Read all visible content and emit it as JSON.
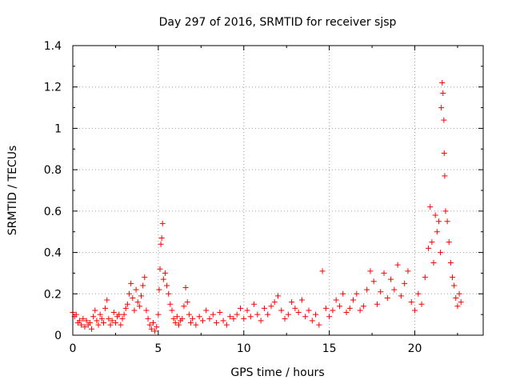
{
  "chart_data": {
    "type": "scatter",
    "title": "Day 297 of 2016, SRMTID for receiver sjsp",
    "xlabel": "GPS time / hours",
    "ylabel": "SRMTID / TECUs",
    "xlim": [
      0,
      24
    ],
    "ylim": [
      0,
      1.4
    ],
    "xticks": [
      0,
      5,
      10,
      15,
      20
    ],
    "yticks": [
      0,
      0.2,
      0.4,
      0.6,
      0.8,
      1,
      1.2,
      1.4
    ],
    "ytick_labels": [
      "0",
      "0.2",
      "0.4",
      "0.6",
      "0.8",
      "1",
      "1.2",
      "1.4"
    ],
    "grid": true,
    "marker": "plus",
    "color": "#ff0000",
    "series": [
      {
        "name": "sjsp",
        "points": [
          [
            0.0,
            0.11
          ],
          [
            0.1,
            0.09
          ],
          [
            0.2,
            0.1
          ],
          [
            0.3,
            0.06
          ],
          [
            0.4,
            0.07
          ],
          [
            0.5,
            0.05
          ],
          [
            0.6,
            0.08
          ],
          [
            0.7,
            0.04
          ],
          [
            0.8,
            0.07
          ],
          [
            0.9,
            0.05
          ],
          [
            1.0,
            0.06
          ],
          [
            1.1,
            0.03
          ],
          [
            1.2,
            0.09
          ],
          [
            1.3,
            0.12
          ],
          [
            1.4,
            0.07
          ],
          [
            1.5,
            0.05
          ],
          [
            1.6,
            0.1
          ],
          [
            1.7,
            0.08
          ],
          [
            1.8,
            0.06
          ],
          [
            1.9,
            0.13
          ],
          [
            2.0,
            0.17
          ],
          [
            2.1,
            0.08
          ],
          [
            2.2,
            0.05
          ],
          [
            2.3,
            0.07
          ],
          [
            2.4,
            0.11
          ],
          [
            2.5,
            0.06
          ],
          [
            2.6,
            0.09
          ],
          [
            2.7,
            0.1
          ],
          [
            2.8,
            0.05
          ],
          [
            2.9,
            0.08
          ],
          [
            3.0,
            0.1
          ],
          [
            3.1,
            0.13
          ],
          [
            3.2,
            0.15
          ],
          [
            3.3,
            0.2
          ],
          [
            3.4,
            0.25
          ],
          [
            3.5,
            0.18
          ],
          [
            3.6,
            0.12
          ],
          [
            3.7,
            0.22
          ],
          [
            3.8,
            0.16
          ],
          [
            3.9,
            0.14
          ],
          [
            4.0,
            0.19
          ],
          [
            4.1,
            0.24
          ],
          [
            4.2,
            0.28
          ],
          [
            4.3,
            0.12
          ],
          [
            4.4,
            0.08
          ],
          [
            4.5,
            0.05
          ],
          [
            4.6,
            0.03
          ],
          [
            4.7,
            0.06
          ],
          [
            4.8,
            0.02
          ],
          [
            4.9,
            0.04
          ],
          [
            5.0,
            0.1
          ],
          [
            5.05,
            0.22
          ],
          [
            5.1,
            0.32
          ],
          [
            5.15,
            0.44
          ],
          [
            5.2,
            0.47
          ],
          [
            5.25,
            0.54
          ],
          [
            5.3,
            0.27
          ],
          [
            5.4,
            0.3
          ],
          [
            5.5,
            0.24
          ],
          [
            5.6,
            0.2
          ],
          [
            5.7,
            0.15
          ],
          [
            5.8,
            0.12
          ],
          [
            5.9,
            0.08
          ],
          [
            6.0,
            0.06
          ],
          [
            6.1,
            0.09
          ],
          [
            6.2,
            0.05
          ],
          [
            6.3,
            0.07
          ],
          [
            6.4,
            0.08
          ],
          [
            6.5,
            0.14
          ],
          [
            6.6,
            0.23
          ],
          [
            6.7,
            0.16
          ],
          [
            6.8,
            0.1
          ],
          [
            6.9,
            0.06
          ],
          [
            7.0,
            0.08
          ],
          [
            7.2,
            0.05
          ],
          [
            7.4,
            0.09
          ],
          [
            7.6,
            0.07
          ],
          [
            7.8,
            0.12
          ],
          [
            8.0,
            0.08
          ],
          [
            8.2,
            0.1
          ],
          [
            8.4,
            0.06
          ],
          [
            8.6,
            0.11
          ],
          [
            8.8,
            0.07
          ],
          [
            9.0,
            0.05
          ],
          [
            9.2,
            0.09
          ],
          [
            9.4,
            0.08
          ],
          [
            9.6,
            0.1
          ],
          [
            9.8,
            0.13
          ],
          [
            10.0,
            0.08
          ],
          [
            10.2,
            0.12
          ],
          [
            10.4,
            0.09
          ],
          [
            10.6,
            0.15
          ],
          [
            10.8,
            0.1
          ],
          [
            11.0,
            0.07
          ],
          [
            11.2,
            0.13
          ],
          [
            11.4,
            0.1
          ],
          [
            11.6,
            0.14
          ],
          [
            11.8,
            0.16
          ],
          [
            12.0,
            0.19
          ],
          [
            12.2,
            0.12
          ],
          [
            12.4,
            0.08
          ],
          [
            12.6,
            0.1
          ],
          [
            12.8,
            0.16
          ],
          [
            13.0,
            0.13
          ],
          [
            13.2,
            0.11
          ],
          [
            13.4,
            0.17
          ],
          [
            13.6,
            0.09
          ],
          [
            13.8,
            0.12
          ],
          [
            14.0,
            0.07
          ],
          [
            14.2,
            0.1
          ],
          [
            14.4,
            0.05
          ],
          [
            14.6,
            0.31
          ],
          [
            14.8,
            0.13
          ],
          [
            15.0,
            0.09
          ],
          [
            15.2,
            0.12
          ],
          [
            15.4,
            0.17
          ],
          [
            15.6,
            0.14
          ],
          [
            15.8,
            0.2
          ],
          [
            16.0,
            0.11
          ],
          [
            16.2,
            0.13
          ],
          [
            16.4,
            0.17
          ],
          [
            16.6,
            0.2
          ],
          [
            16.8,
            0.12
          ],
          [
            17.0,
            0.14
          ],
          [
            17.2,
            0.22
          ],
          [
            17.4,
            0.31
          ],
          [
            17.6,
            0.26
          ],
          [
            17.8,
            0.15
          ],
          [
            18.0,
            0.21
          ],
          [
            18.2,
            0.3
          ],
          [
            18.4,
            0.18
          ],
          [
            18.6,
            0.27
          ],
          [
            18.8,
            0.22
          ],
          [
            19.0,
            0.34
          ],
          [
            19.2,
            0.19
          ],
          [
            19.4,
            0.25
          ],
          [
            19.6,
            0.31
          ],
          [
            19.8,
            0.16
          ],
          [
            20.0,
            0.12
          ],
          [
            20.2,
            0.2
          ],
          [
            20.4,
            0.15
          ],
          [
            20.6,
            0.28
          ],
          [
            20.8,
            0.42
          ],
          [
            20.9,
            0.62
          ],
          [
            21.0,
            0.45
          ],
          [
            21.1,
            0.35
          ],
          [
            21.2,
            0.58
          ],
          [
            21.3,
            0.5
          ],
          [
            21.4,
            0.55
          ],
          [
            21.5,
            0.4
          ],
          [
            21.55,
            1.1
          ],
          [
            21.6,
            1.22
          ],
          [
            21.65,
            1.17
          ],
          [
            21.7,
            1.04
          ],
          [
            21.72,
            0.88
          ],
          [
            21.75,
            0.77
          ],
          [
            21.8,
            0.6
          ],
          [
            21.9,
            0.55
          ],
          [
            22.0,
            0.45
          ],
          [
            22.1,
            0.35
          ],
          [
            22.2,
            0.28
          ],
          [
            22.3,
            0.24
          ],
          [
            22.4,
            0.18
          ],
          [
            22.5,
            0.14
          ],
          [
            22.6,
            0.2
          ],
          [
            22.7,
            0.16
          ]
        ]
      }
    ]
  }
}
